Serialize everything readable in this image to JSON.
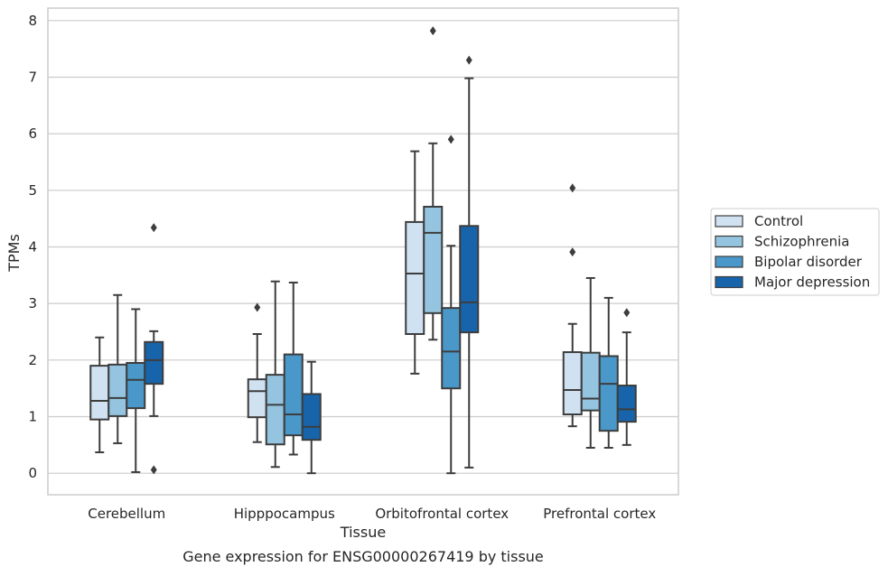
{
  "caption": "Gene expression for ENSG00000267419 by tissue",
  "chart_data": {
    "type": "box",
    "title": "",
    "xlabel": "Tissue",
    "ylabel": "TPMs",
    "ylim": [
      -0.38,
      8.22
    ],
    "yticks": [
      0,
      1,
      2,
      3,
      4,
      5,
      6,
      7,
      8
    ],
    "grid": "horizontal",
    "legend_position": "right",
    "categories": [
      "Cerebellum",
      "Hipppocampus",
      "Orbitofrontal cortex",
      "Prefrontal cortex"
    ],
    "series": [
      {
        "name": "Control",
        "color": "#d0e1f2",
        "boxes": [
          {
            "whislo": 0.37,
            "q1": 0.95,
            "med": 1.28,
            "q3": 1.9,
            "whishi": 2.4,
            "fliers": []
          },
          {
            "whislo": 0.55,
            "q1": 0.99,
            "med": 1.45,
            "q3": 1.66,
            "whishi": 2.46,
            "fliers": [
              2.93
            ]
          },
          {
            "whislo": 1.76,
            "q1": 2.46,
            "med": 3.53,
            "q3": 4.44,
            "whishi": 5.69,
            "fliers": []
          },
          {
            "whislo": 0.83,
            "q1": 1.04,
            "med": 1.47,
            "q3": 2.14,
            "whishi": 2.64,
            "fliers": [
              3.91,
              5.04
            ]
          }
        ]
      },
      {
        "name": "Schizophrenia",
        "color": "#94c4df",
        "boxes": [
          {
            "whislo": 0.53,
            "q1": 1.01,
            "med": 1.33,
            "q3": 1.92,
            "whishi": 3.15,
            "fliers": []
          },
          {
            "whislo": 0.11,
            "q1": 0.51,
            "med": 1.21,
            "q3": 1.74,
            "whishi": 3.39,
            "fliers": []
          },
          {
            "whislo": 2.36,
            "q1": 2.83,
            "med": 4.25,
            "q3": 4.71,
            "whishi": 5.83,
            "fliers": [
              7.82
            ]
          },
          {
            "whislo": 0.45,
            "q1": 1.11,
            "med": 1.32,
            "q3": 2.13,
            "whishi": 3.45,
            "fliers": []
          }
        ]
      },
      {
        "name": "Bipolar disorder",
        "color": "#4a98c9",
        "boxes": [
          {
            "whislo": 0.02,
            "q1": 1.15,
            "med": 1.65,
            "q3": 1.95,
            "whishi": 2.9,
            "fliers": []
          },
          {
            "whislo": 0.33,
            "q1": 0.67,
            "med": 1.04,
            "q3": 2.1,
            "whishi": 3.37,
            "fliers": []
          },
          {
            "whislo": 0.0,
            "q1": 1.5,
            "med": 2.15,
            "q3": 2.92,
            "whishi": 4.02,
            "fliers": [
              5.9
            ]
          },
          {
            "whislo": 0.45,
            "q1": 0.75,
            "med": 1.58,
            "q3": 2.07,
            "whishi": 3.1,
            "fliers": []
          }
        ]
      },
      {
        "name": "Major depression",
        "color": "#1764ab",
        "boxes": [
          {
            "whislo": 1.01,
            "q1": 1.58,
            "med": 2.0,
            "q3": 2.32,
            "whishi": 2.51,
            "fliers": [
              0.06,
              4.34
            ]
          },
          {
            "whislo": 0.0,
            "q1": 0.59,
            "med": 0.82,
            "q3": 1.4,
            "whishi": 1.97,
            "fliers": []
          },
          {
            "whislo": 0.1,
            "q1": 2.49,
            "med": 3.02,
            "q3": 4.37,
            "whishi": 6.98,
            "fliers": [
              7.3
            ]
          },
          {
            "whislo": 0.5,
            "q1": 0.91,
            "med": 1.13,
            "q3": 1.55,
            "whishi": 2.49,
            "fliers": [
              2.84
            ]
          }
        ]
      }
    ]
  }
}
